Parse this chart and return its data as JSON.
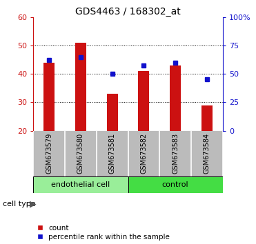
{
  "title": "GDS4463 / 168302_at",
  "samples": [
    "GSM673579",
    "GSM673580",
    "GSM673581",
    "GSM673582",
    "GSM673583",
    "GSM673584"
  ],
  "red_values": [
    44,
    51,
    33,
    41,
    43,
    29
  ],
  "blue_values": [
    45,
    46,
    40,
    43,
    44,
    38
  ],
  "ylim_left": [
    20,
    60
  ],
  "yticks_left": [
    20,
    30,
    40,
    50,
    60
  ],
  "yticks_right": [
    0,
    25,
    50,
    75,
    100
  ],
  "ytick_labels_left": [
    "20",
    "30",
    "40",
    "50",
    "60"
  ],
  "ytick_labels_right": [
    "0",
    "25",
    "50",
    "75",
    "100%"
  ],
  "bar_bottom": 20,
  "bar_color": "#cc1111",
  "square_color": "#1111cc",
  "endo_color": "#99ee99",
  "ctrl_color": "#44dd44",
  "tick_area_color": "#bbbbbb",
  "cell_type_label": "cell type",
  "legend_count_label": "count",
  "legend_percentile_label": "percentile rank within the sample",
  "background_color": "#ffffff"
}
